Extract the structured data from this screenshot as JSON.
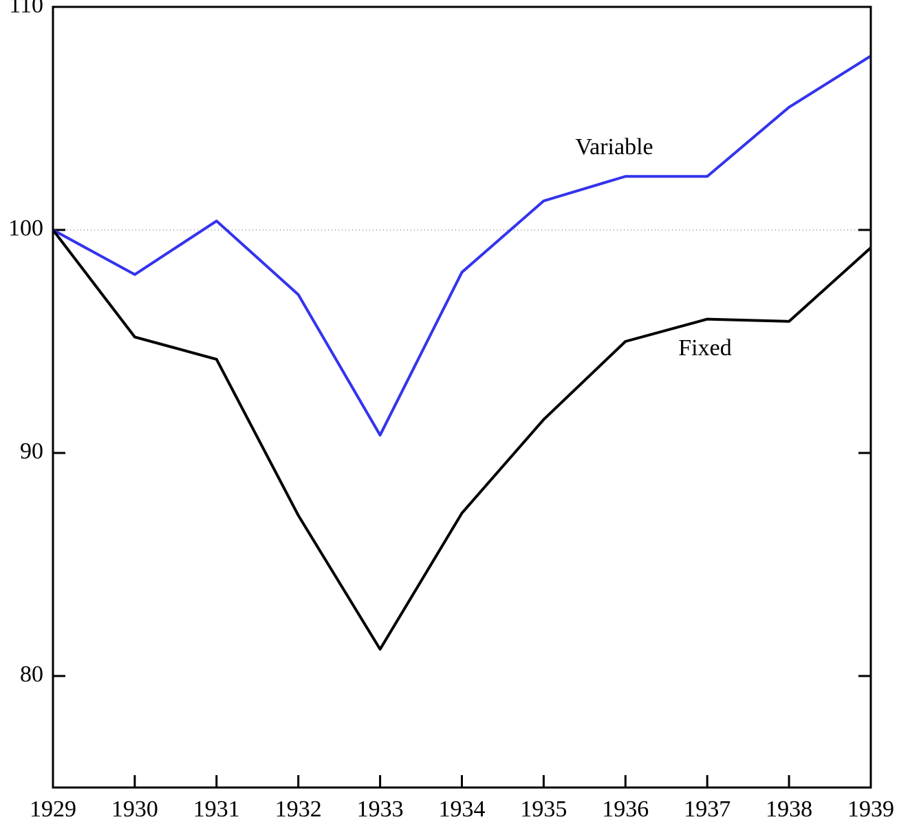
{
  "chart_data": {
    "type": "line",
    "x": [
      1929,
      1930,
      1931,
      1932,
      1933,
      1934,
      1935,
      1936,
      1937,
      1938,
      1939
    ],
    "series": [
      {
        "name": "Variable",
        "color": "#3333ee",
        "values": [
          100,
          98.0,
          100.4,
          97.1,
          90.8,
          98.1,
          101.3,
          102.4,
          102.4,
          105.5,
          107.8
        ]
      },
      {
        "name": "Fixed",
        "color": "#000000",
        "values": [
          100,
          95.2,
          94.2,
          87.2,
          81.2,
          87.3,
          91.5,
          95.0,
          96.0,
          95.9,
          99.2
        ]
      }
    ],
    "xlim": [
      1929,
      1939
    ],
    "xticks": [
      1929,
      1930,
      1931,
      1932,
      1933,
      1934,
      1935,
      1936,
      1937,
      1938,
      1939
    ],
    "ylim": [
      75,
      110
    ],
    "yticks": [
      80,
      90,
      100,
      110
    ],
    "reference_line": 100
  }
}
